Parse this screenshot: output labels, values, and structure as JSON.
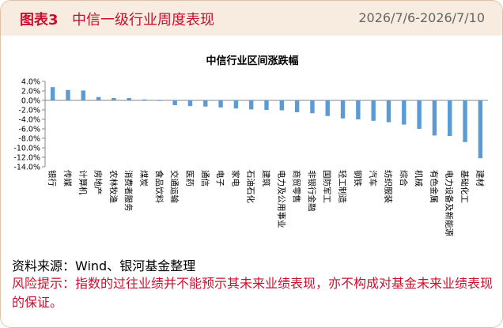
{
  "header": {
    "figure_no": "图表3",
    "figure_title": "中信一级行业周度表现",
    "date_range": "2026/7/6-2026/7/10"
  },
  "chart_data": {
    "type": "bar",
    "title": "中信行业区间涨跌幅",
    "xlabel": "",
    "ylabel": "",
    "ylim": [
      -14,
      4
    ],
    "ytick_step": 2,
    "grid": false,
    "legend": "none",
    "categories": [
      "银行",
      "传媒",
      "计算机",
      "房地产",
      "农林牧渔",
      "消费者服务",
      "煤炭",
      "食品饮料",
      "交通运输",
      "医药",
      "通信",
      "电子",
      "家电",
      "石油石化",
      "建筑",
      "电力及公用事业",
      "商贸零售",
      "非银行金融",
      "国防军工",
      "轻工制造",
      "钢铁",
      "汽车",
      "纺织服装",
      "综合",
      "机械",
      "有色金属",
      "电力设备及新能源",
      "基础化工",
      "建材"
    ],
    "values": [
      2.8,
      2.2,
      2.1,
      0.7,
      0.5,
      0.5,
      0.2,
      -0.1,
      -1.0,
      -1.2,
      -1.3,
      -1.5,
      -1.7,
      -1.9,
      -2.0,
      -2.1,
      -2.5,
      -2.7,
      -3.3,
      -3.8,
      -4.0,
      -4.3,
      -4.6,
      -5.1,
      -6.0,
      -7.4,
      -7.5,
      -8.8,
      -12.2
    ],
    "bar_color": "#5b9bd5"
  },
  "notes": {
    "source": "资料来源：Wind、银河基金整理",
    "risk": "风险提示：指数的过往业绩并不能预示其未来业绩表现，亦不构成对基金未来业绩表现的保证。"
  },
  "colors": {
    "accent": "#c8102e",
    "header_bg": "#f8ebdf",
    "border": "#e2c2a6"
  }
}
